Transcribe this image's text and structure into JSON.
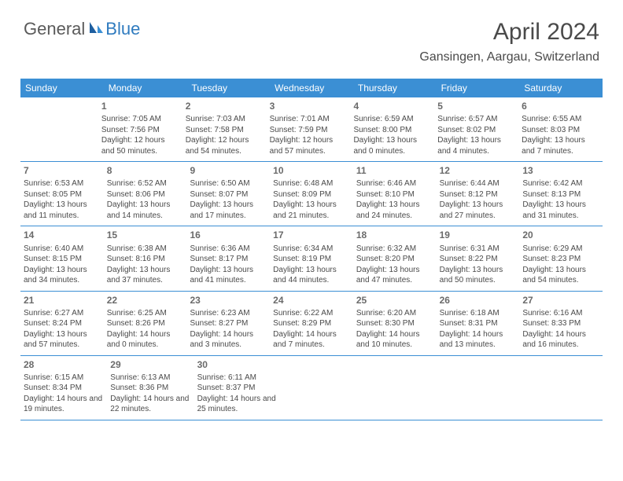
{
  "logo": {
    "general": "General",
    "blue": "Blue"
  },
  "title": "April 2024",
  "location": "Gansingen, Aargau, Switzerland",
  "colors": {
    "header_bg": "#3b8fd4",
    "header_text": "#ffffff",
    "body_text": "#4a4a4a",
    "accent_blue": "#2f7bbf",
    "logo_gray": "#5a5a5a",
    "rule": "#3b8fd4",
    "page_bg": "#ffffff"
  },
  "dow": [
    "Sunday",
    "Monday",
    "Tuesday",
    "Wednesday",
    "Thursday",
    "Friday",
    "Saturday"
  ],
  "weeks": [
    [
      null,
      {
        "n": "1",
        "sr": "Sunrise: 7:05 AM",
        "ss": "Sunset: 7:56 PM",
        "dl": "Daylight: 12 hours and 50 minutes."
      },
      {
        "n": "2",
        "sr": "Sunrise: 7:03 AM",
        "ss": "Sunset: 7:58 PM",
        "dl": "Daylight: 12 hours and 54 minutes."
      },
      {
        "n": "3",
        "sr": "Sunrise: 7:01 AM",
        "ss": "Sunset: 7:59 PM",
        "dl": "Daylight: 12 hours and 57 minutes."
      },
      {
        "n": "4",
        "sr": "Sunrise: 6:59 AM",
        "ss": "Sunset: 8:00 PM",
        "dl": "Daylight: 13 hours and 0 minutes."
      },
      {
        "n": "5",
        "sr": "Sunrise: 6:57 AM",
        "ss": "Sunset: 8:02 PM",
        "dl": "Daylight: 13 hours and 4 minutes."
      },
      {
        "n": "6",
        "sr": "Sunrise: 6:55 AM",
        "ss": "Sunset: 8:03 PM",
        "dl": "Daylight: 13 hours and 7 minutes."
      }
    ],
    [
      {
        "n": "7",
        "sr": "Sunrise: 6:53 AM",
        "ss": "Sunset: 8:05 PM",
        "dl": "Daylight: 13 hours and 11 minutes."
      },
      {
        "n": "8",
        "sr": "Sunrise: 6:52 AM",
        "ss": "Sunset: 8:06 PM",
        "dl": "Daylight: 13 hours and 14 minutes."
      },
      {
        "n": "9",
        "sr": "Sunrise: 6:50 AM",
        "ss": "Sunset: 8:07 PM",
        "dl": "Daylight: 13 hours and 17 minutes."
      },
      {
        "n": "10",
        "sr": "Sunrise: 6:48 AM",
        "ss": "Sunset: 8:09 PM",
        "dl": "Daylight: 13 hours and 21 minutes."
      },
      {
        "n": "11",
        "sr": "Sunrise: 6:46 AM",
        "ss": "Sunset: 8:10 PM",
        "dl": "Daylight: 13 hours and 24 minutes."
      },
      {
        "n": "12",
        "sr": "Sunrise: 6:44 AM",
        "ss": "Sunset: 8:12 PM",
        "dl": "Daylight: 13 hours and 27 minutes."
      },
      {
        "n": "13",
        "sr": "Sunrise: 6:42 AM",
        "ss": "Sunset: 8:13 PM",
        "dl": "Daylight: 13 hours and 31 minutes."
      }
    ],
    [
      {
        "n": "14",
        "sr": "Sunrise: 6:40 AM",
        "ss": "Sunset: 8:15 PM",
        "dl": "Daylight: 13 hours and 34 minutes."
      },
      {
        "n": "15",
        "sr": "Sunrise: 6:38 AM",
        "ss": "Sunset: 8:16 PM",
        "dl": "Daylight: 13 hours and 37 minutes."
      },
      {
        "n": "16",
        "sr": "Sunrise: 6:36 AM",
        "ss": "Sunset: 8:17 PM",
        "dl": "Daylight: 13 hours and 41 minutes."
      },
      {
        "n": "17",
        "sr": "Sunrise: 6:34 AM",
        "ss": "Sunset: 8:19 PM",
        "dl": "Daylight: 13 hours and 44 minutes."
      },
      {
        "n": "18",
        "sr": "Sunrise: 6:32 AM",
        "ss": "Sunset: 8:20 PM",
        "dl": "Daylight: 13 hours and 47 minutes."
      },
      {
        "n": "19",
        "sr": "Sunrise: 6:31 AM",
        "ss": "Sunset: 8:22 PM",
        "dl": "Daylight: 13 hours and 50 minutes."
      },
      {
        "n": "20",
        "sr": "Sunrise: 6:29 AM",
        "ss": "Sunset: 8:23 PM",
        "dl": "Daylight: 13 hours and 54 minutes."
      }
    ],
    [
      {
        "n": "21",
        "sr": "Sunrise: 6:27 AM",
        "ss": "Sunset: 8:24 PM",
        "dl": "Daylight: 13 hours and 57 minutes."
      },
      {
        "n": "22",
        "sr": "Sunrise: 6:25 AM",
        "ss": "Sunset: 8:26 PM",
        "dl": "Daylight: 14 hours and 0 minutes."
      },
      {
        "n": "23",
        "sr": "Sunrise: 6:23 AM",
        "ss": "Sunset: 8:27 PM",
        "dl": "Daylight: 14 hours and 3 minutes."
      },
      {
        "n": "24",
        "sr": "Sunrise: 6:22 AM",
        "ss": "Sunset: 8:29 PM",
        "dl": "Daylight: 14 hours and 7 minutes."
      },
      {
        "n": "25",
        "sr": "Sunrise: 6:20 AM",
        "ss": "Sunset: 8:30 PM",
        "dl": "Daylight: 14 hours and 10 minutes."
      },
      {
        "n": "26",
        "sr": "Sunrise: 6:18 AM",
        "ss": "Sunset: 8:31 PM",
        "dl": "Daylight: 14 hours and 13 minutes."
      },
      {
        "n": "27",
        "sr": "Sunrise: 6:16 AM",
        "ss": "Sunset: 8:33 PM",
        "dl": "Daylight: 14 hours and 16 minutes."
      }
    ],
    [
      {
        "n": "28",
        "sr": "Sunrise: 6:15 AM",
        "ss": "Sunset: 8:34 PM",
        "dl": "Daylight: 14 hours and 19 minutes."
      },
      {
        "n": "29",
        "sr": "Sunrise: 6:13 AM",
        "ss": "Sunset: 8:36 PM",
        "dl": "Daylight: 14 hours and 22 minutes."
      },
      {
        "n": "30",
        "sr": "Sunrise: 6:11 AM",
        "ss": "Sunset: 8:37 PM",
        "dl": "Daylight: 14 hours and 25 minutes."
      },
      null,
      null,
      null,
      null
    ]
  ]
}
